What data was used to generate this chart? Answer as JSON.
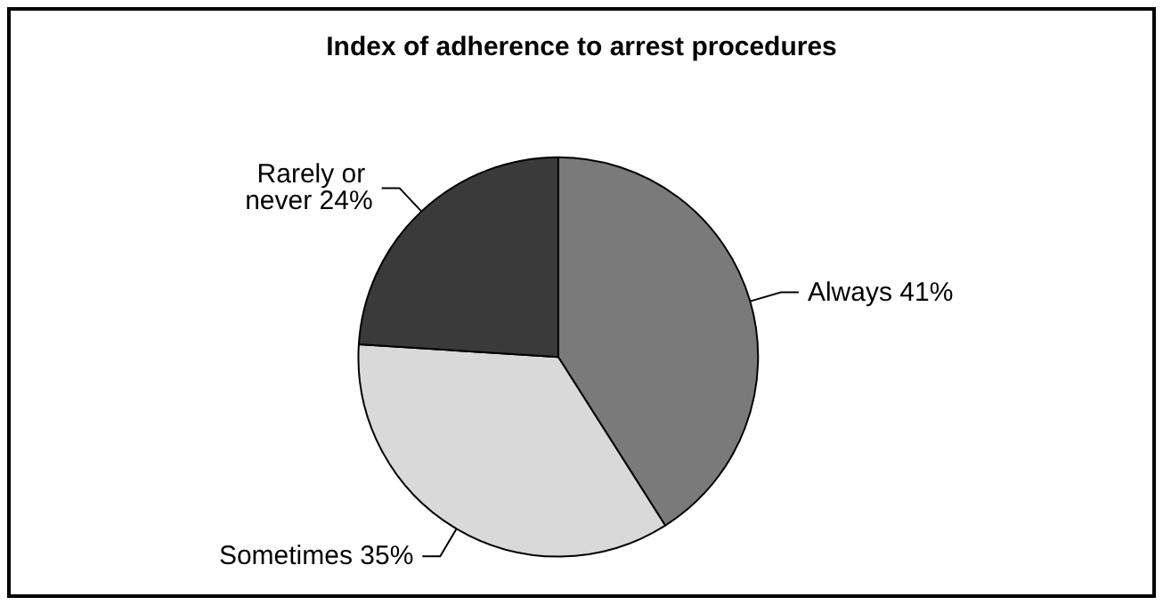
{
  "chart_data": {
    "type": "pie",
    "title": "Index of adherence to arrest procedures",
    "categories": [
      "Always",
      "Sometimes",
      "Rarely or never"
    ],
    "values": [
      41,
      35,
      24
    ],
    "value_labels": [
      "41%",
      "35%",
      "24%"
    ],
    "colors": [
      "#7a7a7a",
      "#d9d9d9",
      "#3a3a3a"
    ],
    "legend": false
  }
}
